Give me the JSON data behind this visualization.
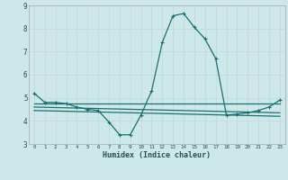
{
  "xlabel": "Humidex (Indice chaleur)",
  "background_color": "#cce8e8",
  "grid_color": "#c8d8d8",
  "line_color": "#1a7070",
  "xlim": [
    -0.5,
    23.5
  ],
  "ylim": [
    3,
    9
  ],
  "yticks": [
    3,
    4,
    5,
    6,
    7,
    8,
    9
  ],
  "xticks": [
    0,
    1,
    2,
    3,
    4,
    5,
    6,
    7,
    8,
    9,
    10,
    11,
    12,
    13,
    14,
    15,
    16,
    17,
    18,
    19,
    20,
    21,
    22,
    23
  ],
  "series1_x": [
    0,
    1,
    2,
    3,
    4,
    5,
    6,
    7,
    8,
    9,
    10,
    11,
    12,
    13,
    14,
    15,
    16,
    17,
    18,
    19,
    20,
    21,
    22,
    23
  ],
  "series1_y": [
    5.2,
    4.8,
    4.8,
    4.75,
    4.6,
    4.5,
    4.45,
    3.95,
    3.4,
    3.4,
    4.25,
    5.3,
    7.4,
    8.55,
    8.65,
    8.05,
    7.55,
    6.7,
    4.25,
    4.3,
    4.35,
    4.45,
    4.6,
    4.9
  ],
  "series2_x": [
    0,
    23
  ],
  "series2_y": [
    4.75,
    4.75
  ],
  "series3_x": [
    0,
    23
  ],
  "series3_y": [
    4.6,
    4.35
  ],
  "series4_x": [
    0,
    23
  ],
  "series4_y": [
    4.45,
    4.2
  ]
}
